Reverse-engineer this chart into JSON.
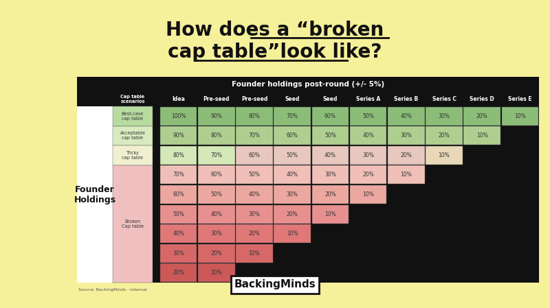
{
  "title_line1": "How does a “broken",
  "title_line2": "cap table”look like?",
  "table_title": "Founder holdings post-round (+/- 5%)",
  "background_color": "#F5F09A",
  "col_headers": [
    "Idea",
    "Pre-seed",
    "Pre-seed",
    "Seed",
    "Seed",
    "Series A",
    "Series B",
    "Series C",
    "Series D",
    "Series E"
  ],
  "rows": [
    [
      "100%",
      "90%",
      "80%",
      "70%",
      "60%",
      "50%",
      "40%",
      "30%",
      "20%",
      "10%"
    ],
    [
      "90%",
      "80%",
      "70%",
      "60%",
      "50%",
      "40%",
      "30%",
      "20%",
      "10%",
      null
    ],
    [
      "80%",
      "70%",
      "60%",
      "50%",
      "40%",
      "30%",
      "20%",
      "10%",
      null,
      null
    ],
    [
      "70%",
      "60%",
      "50%",
      "40%",
      "30%",
      "20%",
      "10%",
      null,
      null,
      null
    ],
    [
      "60%",
      "50%",
      "40%",
      "30%",
      "20%",
      "10%",
      null,
      null,
      null,
      null
    ],
    [
      "50%",
      "40%",
      "30%",
      "20%",
      "10%",
      null,
      null,
      null,
      null,
      null
    ],
    [
      "40%",
      "30%",
      "20%",
      "10%",
      null,
      null,
      null,
      null,
      null,
      null
    ],
    [
      "30%",
      "20%",
      "10%",
      null,
      null,
      null,
      null,
      null,
      null,
      null
    ],
    [
      "20%",
      "10%",
      null,
      null,
      null,
      null,
      null,
      null,
      null,
      null
    ]
  ],
  "row_colors": [
    [
      "#8BBD78",
      "#8BBD78",
      "#8BBD78",
      "#8BBD78",
      "#8BBD78",
      "#8BBD78",
      "#8BBD78",
      "#8BBD78",
      "#8BBD78",
      "#8BBD78"
    ],
    [
      "#AECF90",
      "#AECF90",
      "#AECF90",
      "#AECF90",
      "#AECF90",
      "#AECF90",
      "#AECF90",
      "#AECF90",
      "#AECF90",
      null
    ],
    [
      "#D5E8B8",
      "#D5E8B8",
      "#E8C8BE",
      "#E8C8BE",
      "#E8C8BE",
      "#E8C8BE",
      "#E8C8BE",
      "#E8D8B8",
      null,
      null
    ],
    [
      "#F0C0B8",
      "#F0C0B8",
      "#F0C0B8",
      "#F0C0B8",
      "#F0C0B8",
      "#F0C0B8",
      "#F0C0B8",
      null,
      null,
      null
    ],
    [
      "#ECA8A0",
      "#ECA8A0",
      "#ECA8A0",
      "#ECA8A0",
      "#ECA8A0",
      "#ECA8A0",
      null,
      null,
      null,
      null
    ],
    [
      "#E89090",
      "#E89090",
      "#E89090",
      "#E89090",
      "#E89090",
      null,
      null,
      null,
      null,
      null
    ],
    [
      "#E07878",
      "#E07878",
      "#E07878",
      "#E07878",
      null,
      null,
      null,
      null,
      null,
      null
    ],
    [
      "#D86868",
      "#D86868",
      "#D86868",
      null,
      null,
      null,
      null,
      null,
      null,
      null
    ],
    [
      "#CC5858",
      "#CC5858",
      null,
      null,
      null,
      null,
      null,
      null,
      null,
      null
    ]
  ],
  "scenario_spans": [
    [
      0,
      0,
      "Best-case\ncap table",
      "#B8DCA0"
    ],
    [
      1,
      1,
      "Acceptable\ncap table",
      "#D8EBBF"
    ],
    [
      2,
      2,
      "Tricky\ncap table",
      "#F0F0D0"
    ],
    [
      3,
      8,
      "Broken\nCap table",
      "#F0C0C0"
    ]
  ],
  "source_text": "Source: BackingMinds - internal",
  "logo_text": "BackingMinds",
  "scenario_label": "Cap table\nscenarios",
  "founder_label": "Founder\nHoldings"
}
